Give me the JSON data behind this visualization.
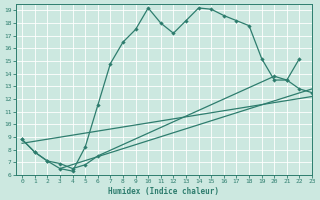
{
  "xlabel": "Humidex (Indice chaleur)",
  "xlim": [
    -0.5,
    23
  ],
  "ylim": [
    6,
    19.5
  ],
  "xticks": [
    0,
    1,
    2,
    3,
    4,
    5,
    6,
    7,
    8,
    9,
    10,
    11,
    12,
    13,
    14,
    15,
    16,
    17,
    18,
    19,
    20,
    21,
    22,
    23
  ],
  "yticks": [
    6,
    7,
    8,
    9,
    10,
    11,
    12,
    13,
    14,
    15,
    16,
    17,
    18,
    19
  ],
  "color": "#2e7d6e",
  "bg_color": "#cce8e0",
  "curve1_x": [
    0,
    1,
    2,
    3,
    4,
    5,
    6,
    7,
    8,
    9,
    10,
    11,
    12,
    13,
    14,
    15,
    16,
    17,
    18,
    19,
    20,
    21,
    22
  ],
  "curve1_y": [
    8.8,
    7.8,
    7.1,
    6.5,
    6.3,
    8.2,
    11.5,
    14.8,
    16.5,
    17.5,
    19.2,
    18.0,
    17.2,
    18.2,
    19.2,
    19.1,
    18.6,
    18.2,
    17.8,
    15.2,
    13.5,
    13.5,
    15.2
  ],
  "curve2_x": [
    0,
    1,
    2,
    3,
    4,
    5,
    6,
    20,
    21,
    22,
    23
  ],
  "curve2_y": [
    8.8,
    7.8,
    7.1,
    6.9,
    6.5,
    6.8,
    7.5,
    13.8,
    13.5,
    12.8,
    12.5
  ],
  "line3_x": [
    0,
    23
  ],
  "line3_y": [
    8.5,
    12.2
  ],
  "line4_x": [
    3,
    23
  ],
  "line4_y": [
    6.5,
    12.8
  ]
}
